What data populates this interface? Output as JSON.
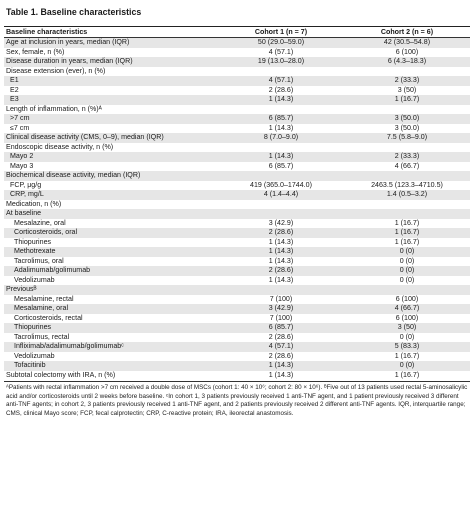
{
  "title": "Table 1. Baseline characteristics",
  "header": {
    "col1": "Baseline characteristics",
    "col2": "Cohort 1 (n = 7)",
    "col3": "Cohort 2 (n = 6)"
  },
  "rows": [
    {
      "label": "Age at inclusion in years, median (IQR)",
      "c1": "50 (29.0–59.0)",
      "c2": "42 (30.5–54.8)",
      "indent": 0,
      "shade": true
    },
    {
      "label": "Sex, female, n (%)",
      "c1": "4 (57.1)",
      "c2": "6 (100)",
      "indent": 0,
      "shade": false
    },
    {
      "label": "Disease duration in years, median (IQR)",
      "c1": "19 (13.0–28.0)",
      "c2": "6 (4.3–18.3)",
      "indent": 0,
      "shade": true
    },
    {
      "label": "Disease extension (ever), n (%)",
      "c1": "",
      "c2": "",
      "indent": 0,
      "shade": false
    },
    {
      "label": "E1",
      "c1": "4 (57.1)",
      "c2": "2 (33.3)",
      "indent": 1,
      "shade": true
    },
    {
      "label": "E2",
      "c1": "2 (28.6)",
      "c2": "3 (50)",
      "indent": 1,
      "shade": false
    },
    {
      "label": "E3",
      "c1": "1 (14.3)",
      "c2": "1 (16.7)",
      "indent": 1,
      "shade": true
    },
    {
      "label": "Length of inflammation, n (%)ᴬ",
      "c1": "",
      "c2": "",
      "indent": 0,
      "shade": false
    },
    {
      "label": ">7 cm",
      "c1": "6 (85.7)",
      "c2": "3 (50.0)",
      "indent": 1,
      "shade": true
    },
    {
      "label": "≤7 cm",
      "c1": "1 (14.3)",
      "c2": "3 (50.0)",
      "indent": 1,
      "shade": false
    },
    {
      "label": "Clinical disease activity (CMS, 0–9), median (IQR)",
      "c1": "8 (7.0–9.0)",
      "c2": "7.5 (5.8–9.0)",
      "indent": 0,
      "shade": true
    },
    {
      "label": "Endoscopic disease activity, n (%)",
      "c1": "",
      "c2": "",
      "indent": 0,
      "shade": false
    },
    {
      "label": "Mayo 2",
      "c1": "1 (14.3)",
      "c2": "2 (33.3)",
      "indent": 1,
      "shade": true
    },
    {
      "label": "Mayo 3",
      "c1": "6 (85.7)",
      "c2": "4 (66.7)",
      "indent": 1,
      "shade": false
    },
    {
      "label": "Biochemical disease activity, median (IQR)",
      "c1": "",
      "c2": "",
      "indent": 0,
      "shade": true
    },
    {
      "label": "FCP, μg/g",
      "c1": "419 (365.0–1744.0)",
      "c2": "2463.5 (123.3–4710.5)",
      "indent": 1,
      "shade": false
    },
    {
      "label": "CRP, mg/L",
      "c1": "4 (1.4–4.4)",
      "c2": "1.4 (0.5–3.2)",
      "indent": 1,
      "shade": true
    },
    {
      "label": "Medication, n (%)",
      "c1": "",
      "c2": "",
      "indent": 0,
      "shade": false
    },
    {
      "label": "At baseline",
      "c1": "",
      "c2": "",
      "indent": 0,
      "shade": true
    },
    {
      "label": "Mesalazine, oral",
      "c1": "3 (42.9)",
      "c2": "1 (16.7)",
      "indent": 2,
      "shade": false
    },
    {
      "label": "Corticosteroids, oral",
      "c1": "2 (28.6)",
      "c2": "1 (16.7)",
      "indent": 2,
      "shade": true
    },
    {
      "label": "Thiopurines",
      "c1": "1 (14.3)",
      "c2": "1 (16.7)",
      "indent": 2,
      "shade": false
    },
    {
      "label": "Methotrexate",
      "c1": "1 (14.3)",
      "c2": "0 (0)",
      "indent": 2,
      "shade": true
    },
    {
      "label": "Tacrolimus, oral",
      "c1": "1 (14.3)",
      "c2": "0 (0)",
      "indent": 2,
      "shade": false
    },
    {
      "label": "Adalimumab/golimumab",
      "c1": "2 (28.6)",
      "c2": "0 (0)",
      "indent": 2,
      "shade": true
    },
    {
      "label": "Vedolizumab",
      "c1": "1 (14.3)",
      "c2": "0 (0)",
      "indent": 2,
      "shade": false
    },
    {
      "label": "Previousᴮ",
      "c1": "",
      "c2": "",
      "indent": 0,
      "shade": true
    },
    {
      "label": "Mesalamine, rectal",
      "c1": "7 (100)",
      "c2": "6 (100)",
      "indent": 2,
      "shade": false
    },
    {
      "label": "Mesalamine, oral",
      "c1": "3 (42.9)",
      "c2": "4 (66.7)",
      "indent": 2,
      "shade": true
    },
    {
      "label": "Corticosteroids, rectal",
      "c1": "7 (100)",
      "c2": "6 (100)",
      "indent": 2,
      "shade": false
    },
    {
      "label": "Thiopurines",
      "c1": "6 (85.7)",
      "c2": "3 (50)",
      "indent": 2,
      "shade": true
    },
    {
      "label": "Tacrolimus, rectal",
      "c1": "2 (28.6)",
      "c2": "0 (0)",
      "indent": 2,
      "shade": false
    },
    {
      "label": "Infliximab/adalimumab/golimumabᶜ",
      "c1": "4 (57.1)",
      "c2": "5 (83.3)",
      "indent": 2,
      "shade": true
    },
    {
      "label": "Vedolizumab",
      "c1": "2 (28.6)",
      "c2": "1 (16.7)",
      "indent": 2,
      "shade": false
    },
    {
      "label": "Tofacitinib",
      "c1": "1 (14.3)",
      "c2": "0 (0)",
      "indent": 2,
      "shade": true
    },
    {
      "label": "Subtotal colectomy with IRA, n (%)",
      "c1": "1 (14.3)",
      "c2": "1 (16.7)",
      "indent": 0,
      "shade": false
    }
  ],
  "footnote": "ᴬPatients with rectal inflammation >7 cm received a double dose of MSCs (cohort 1: 40 × 10⁶; cohort 2: 80 × 10⁶). ᴮFive out of 13 patients used rectal 5-aminosalicylic acid and/or corticosteroids until 2 weeks before baseline. ᶜIn cohort 1, 3 patients previously received 1 anti-TNF agent, and 1 patient previously received 3 different anti-TNF agents; in cohort 2, 3 patients previously received 1 anti-TNF agent, and 2 patients previously received 2 different anti-TNF agents. IQR, interquartile range; CMS, clinical Mayo score; FCP, fecal calprotectin; CRP, C-reactive protein; IRA, ileorectal anastomosis."
}
